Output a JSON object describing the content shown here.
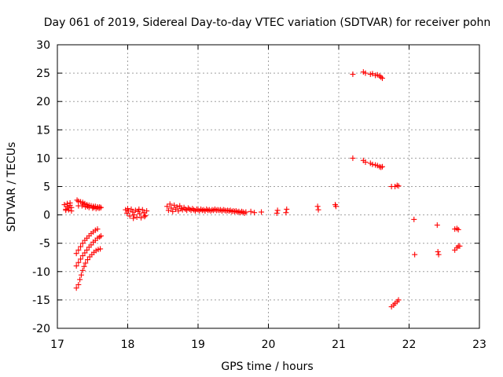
{
  "chart_data": {
    "type": "scatter",
    "title": "Day 061 of 2019, Sidereal Day-to-day VTEC variation (SDTVAR) for receiver pohn",
    "xlabel": "GPS time / hours",
    "ylabel": "SDTVAR / TECUs",
    "xlim": [
      17,
      23
    ],
    "ylim": [
      -20,
      30
    ],
    "xticks": [
      17,
      18,
      19,
      20,
      21,
      22,
      23
    ],
    "yticks": [
      -20,
      -15,
      -10,
      -5,
      0,
      5,
      10,
      15,
      20,
      25,
      30
    ],
    "grid": true,
    "marker": "+",
    "color": "#ff0000",
    "series": [
      {
        "name": "SDTVAR",
        "points": [
          [
            17.1,
            1.8
          ],
          [
            17.12,
            1.0
          ],
          [
            17.14,
            1.5
          ],
          [
            17.16,
            1.2
          ],
          [
            17.18,
            1.7
          ],
          [
            17.2,
            1.3
          ],
          [
            17.12,
            0.8
          ],
          [
            17.16,
            0.9
          ],
          [
            17.2,
            0.7
          ],
          [
            17.14,
            2.0
          ],
          [
            17.18,
            2.1
          ],
          [
            17.28,
            2.6
          ],
          [
            17.3,
            2.4
          ],
          [
            17.33,
            2.3
          ],
          [
            17.36,
            2.2
          ],
          [
            17.39,
            2.0
          ],
          [
            17.42,
            1.8
          ],
          [
            17.45,
            1.7
          ],
          [
            17.48,
            1.6
          ],
          [
            17.51,
            1.5
          ],
          [
            17.54,
            1.5
          ],
          [
            17.57,
            1.4
          ],
          [
            17.6,
            1.4
          ],
          [
            17.3,
            1.6
          ],
          [
            17.35,
            1.6
          ],
          [
            17.4,
            1.4
          ],
          [
            17.45,
            1.3
          ],
          [
            17.5,
            1.2
          ],
          [
            17.55,
            1.1
          ],
          [
            17.6,
            1.2
          ],
          [
            17.62,
            1.3
          ],
          [
            17.37,
            1.9
          ],
          [
            17.43,
            1.5
          ],
          [
            17.52,
            1.3
          ],
          [
            17.58,
            1.2
          ],
          [
            17.27,
            -12.9
          ],
          [
            17.3,
            -12.3
          ],
          [
            17.32,
            -11.4
          ],
          [
            17.34,
            -10.6
          ],
          [
            17.36,
            -9.8
          ],
          [
            17.38,
            -9.1
          ],
          [
            17.4,
            -8.5
          ],
          [
            17.43,
            -7.9
          ],
          [
            17.46,
            -7.4
          ],
          [
            17.49,
            -7.0
          ],
          [
            17.52,
            -6.6
          ],
          [
            17.55,
            -6.3
          ],
          [
            17.58,
            -6.1
          ],
          [
            17.61,
            -6.0
          ],
          [
            17.27,
            -9.0
          ],
          [
            17.3,
            -8.4
          ],
          [
            17.33,
            -7.8
          ],
          [
            17.36,
            -7.2
          ],
          [
            17.39,
            -6.7
          ],
          [
            17.42,
            -6.2
          ],
          [
            17.45,
            -5.7
          ],
          [
            17.48,
            -5.3
          ],
          [
            17.51,
            -4.8
          ],
          [
            17.54,
            -4.5
          ],
          [
            17.57,
            -4.1
          ],
          [
            17.6,
            -3.9
          ],
          [
            17.62,
            -3.7
          ],
          [
            17.27,
            -6.8
          ],
          [
            17.3,
            -6.2
          ],
          [
            17.33,
            -5.6
          ],
          [
            17.36,
            -5.0
          ],
          [
            17.39,
            -4.5
          ],
          [
            17.42,
            -4.1
          ],
          [
            17.45,
            -3.7
          ],
          [
            17.48,
            -3.3
          ],
          [
            17.51,
            -3.0
          ],
          [
            17.54,
            -2.7
          ],
          [
            17.57,
            -2.5
          ],
          [
            17.97,
            0.9
          ],
          [
            17.99,
            0.3
          ],
          [
            18.01,
            0.7
          ],
          [
            18.03,
            -0.2
          ],
          [
            18.05,
            1.0
          ],
          [
            18.07,
            0.5
          ],
          [
            18.09,
            0.0
          ],
          [
            18.11,
            0.8
          ],
          [
            18.13,
            -0.4
          ],
          [
            18.15,
            0.6
          ],
          [
            18.17,
            0.2
          ],
          [
            18.19,
            -0.5
          ],
          [
            18.21,
            0.9
          ],
          [
            18.23,
            0.4
          ],
          [
            18.25,
            -0.1
          ],
          [
            18.27,
            0.7
          ],
          [
            18.0,
            1.1
          ],
          [
            18.08,
            -0.6
          ],
          [
            18.16,
            1.0
          ],
          [
            18.24,
            -0.3
          ],
          [
            18.56,
            1.5
          ],
          [
            18.58,
            0.8
          ],
          [
            18.6,
            1.9
          ],
          [
            18.62,
            1.2
          ],
          [
            18.64,
            0.6
          ],
          [
            18.66,
            1.7
          ],
          [
            18.68,
            1.0
          ],
          [
            18.7,
            1.4
          ],
          [
            18.72,
            0.7
          ],
          [
            18.74,
            1.6
          ],
          [
            18.76,
            1.1
          ],
          [
            18.78,
            0.9
          ],
          [
            18.8,
            1.3
          ],
          [
            18.82,
            1.0
          ],
          [
            18.84,
            0.8
          ],
          [
            18.86,
            1.2
          ],
          [
            18.88,
            1.0
          ],
          [
            18.9,
            0.8
          ],
          [
            18.92,
            1.1
          ],
          [
            18.94,
            0.9
          ],
          [
            18.96,
            0.7
          ],
          [
            18.98,
            1.0
          ],
          [
            19.0,
            0.9
          ],
          [
            19.02,
            0.7
          ],
          [
            19.04,
            1.0
          ],
          [
            19.06,
            0.8
          ],
          [
            19.08,
            0.9
          ],
          [
            19.1,
            0.7
          ],
          [
            19.12,
            1.0
          ],
          [
            19.14,
            0.8
          ],
          [
            19.16,
            0.9
          ],
          [
            19.18,
            0.7
          ],
          [
            19.2,
            0.9
          ],
          [
            19.22,
            0.8
          ],
          [
            19.24,
            1.0
          ],
          [
            19.26,
            0.8
          ],
          [
            19.28,
            0.9
          ],
          [
            19.3,
            0.8
          ],
          [
            19.32,
            0.9
          ],
          [
            19.34,
            0.7
          ],
          [
            19.36,
            0.9
          ],
          [
            19.38,
            0.8
          ],
          [
            19.4,
            0.7
          ],
          [
            19.42,
            0.8
          ],
          [
            19.44,
            0.7
          ],
          [
            19.46,
            0.8
          ],
          [
            19.48,
            0.6
          ],
          [
            19.5,
            0.7
          ],
          [
            19.52,
            0.6
          ],
          [
            19.54,
            0.7
          ],
          [
            19.56,
            0.5
          ],
          [
            19.58,
            0.6
          ],
          [
            19.6,
            0.4
          ],
          [
            19.62,
            0.6
          ],
          [
            19.64,
            0.5
          ],
          [
            19.66,
            0.3
          ],
          [
            19.68,
            0.5
          ],
          [
            19.75,
            0.6
          ],
          [
            19.8,
            0.4
          ],
          [
            19.9,
            0.5
          ],
          [
            20.12,
            0.3
          ],
          [
            20.13,
            0.8
          ],
          [
            20.25,
            0.4
          ],
          [
            20.26,
            1.0
          ],
          [
            20.7,
            1.5
          ],
          [
            20.71,
            0.9
          ],
          [
            20.95,
            1.8
          ],
          [
            20.96,
            1.5
          ],
          [
            21.2,
            24.8
          ],
          [
            21.35,
            25.2
          ],
          [
            21.38,
            25.0
          ],
          [
            21.45,
            24.8
          ],
          [
            21.48,
            24.9
          ],
          [
            21.52,
            24.6
          ],
          [
            21.55,
            24.7
          ],
          [
            21.58,
            24.5
          ],
          [
            21.6,
            24.3
          ],
          [
            21.62,
            24.1
          ],
          [
            21.2,
            10.0
          ],
          [
            21.35,
            9.6
          ],
          [
            21.38,
            9.3
          ],
          [
            21.45,
            9.1
          ],
          [
            21.48,
            8.9
          ],
          [
            21.52,
            8.8
          ],
          [
            21.55,
            8.7
          ],
          [
            21.58,
            8.5
          ],
          [
            21.6,
            8.4
          ],
          [
            21.62,
            8.5
          ],
          [
            21.75,
            5.0
          ],
          [
            21.8,
            5.0
          ],
          [
            21.83,
            5.2
          ],
          [
            21.85,
            5.1
          ],
          [
            21.75,
            -16.2
          ],
          [
            21.78,
            -15.9
          ],
          [
            21.8,
            -15.6
          ],
          [
            21.83,
            -15.3
          ],
          [
            21.85,
            -15.0
          ],
          [
            22.07,
            -0.8
          ],
          [
            22.08,
            -7.0
          ],
          [
            22.4,
            -1.8
          ],
          [
            22.41,
            -6.5
          ],
          [
            22.42,
            -7.0
          ],
          [
            22.65,
            -2.5
          ],
          [
            22.68,
            -2.4
          ],
          [
            22.7,
            -2.6
          ],
          [
            22.65,
            -6.2
          ],
          [
            22.68,
            -5.8
          ],
          [
            22.7,
            -5.5
          ],
          [
            22.72,
            -5.5
          ]
        ]
      }
    ]
  }
}
